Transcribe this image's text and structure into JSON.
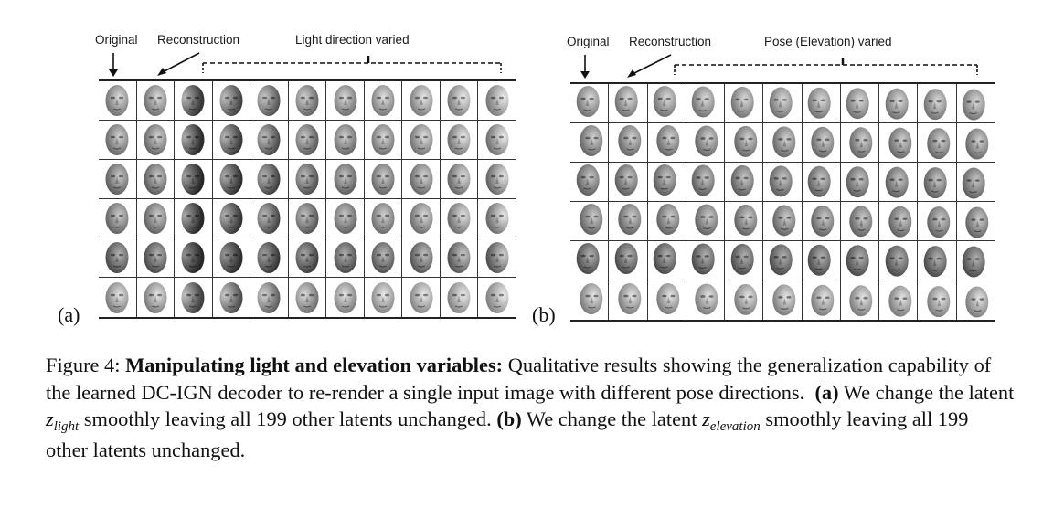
{
  "panel_a": {
    "label_original": "Original",
    "label_reconstruction": "Reconstruction",
    "label_varied": "Light direction varied",
    "letter": "(a)"
  },
  "panel_b": {
    "label_original": "Original",
    "label_reconstruction": "Reconstruction",
    "label_varied": "Pose (Elevation) varied",
    "letter": "(b)"
  },
  "caption": {
    "figure_label": "Figure 4:",
    "bold_title": "Manipulating light and elevation variables:",
    "text_1": "Qualitative results showing the generalization capability of the learned DC-IGN decoder to re-render a single input image with different pose directions.",
    "part_a_label": "(a)",
    "text_2": "We change the latent",
    "var_a_base": "z",
    "var_a_sub": "light",
    "text_3": "smoothly leaving all 199 other latents unchanged.",
    "part_b_label": "(b)",
    "text_4": "We change the latent",
    "var_b_base": "z",
    "var_b_sub": "elevation",
    "text_5": "smoothly leaving all 199 other latents unchanged."
  }
}
